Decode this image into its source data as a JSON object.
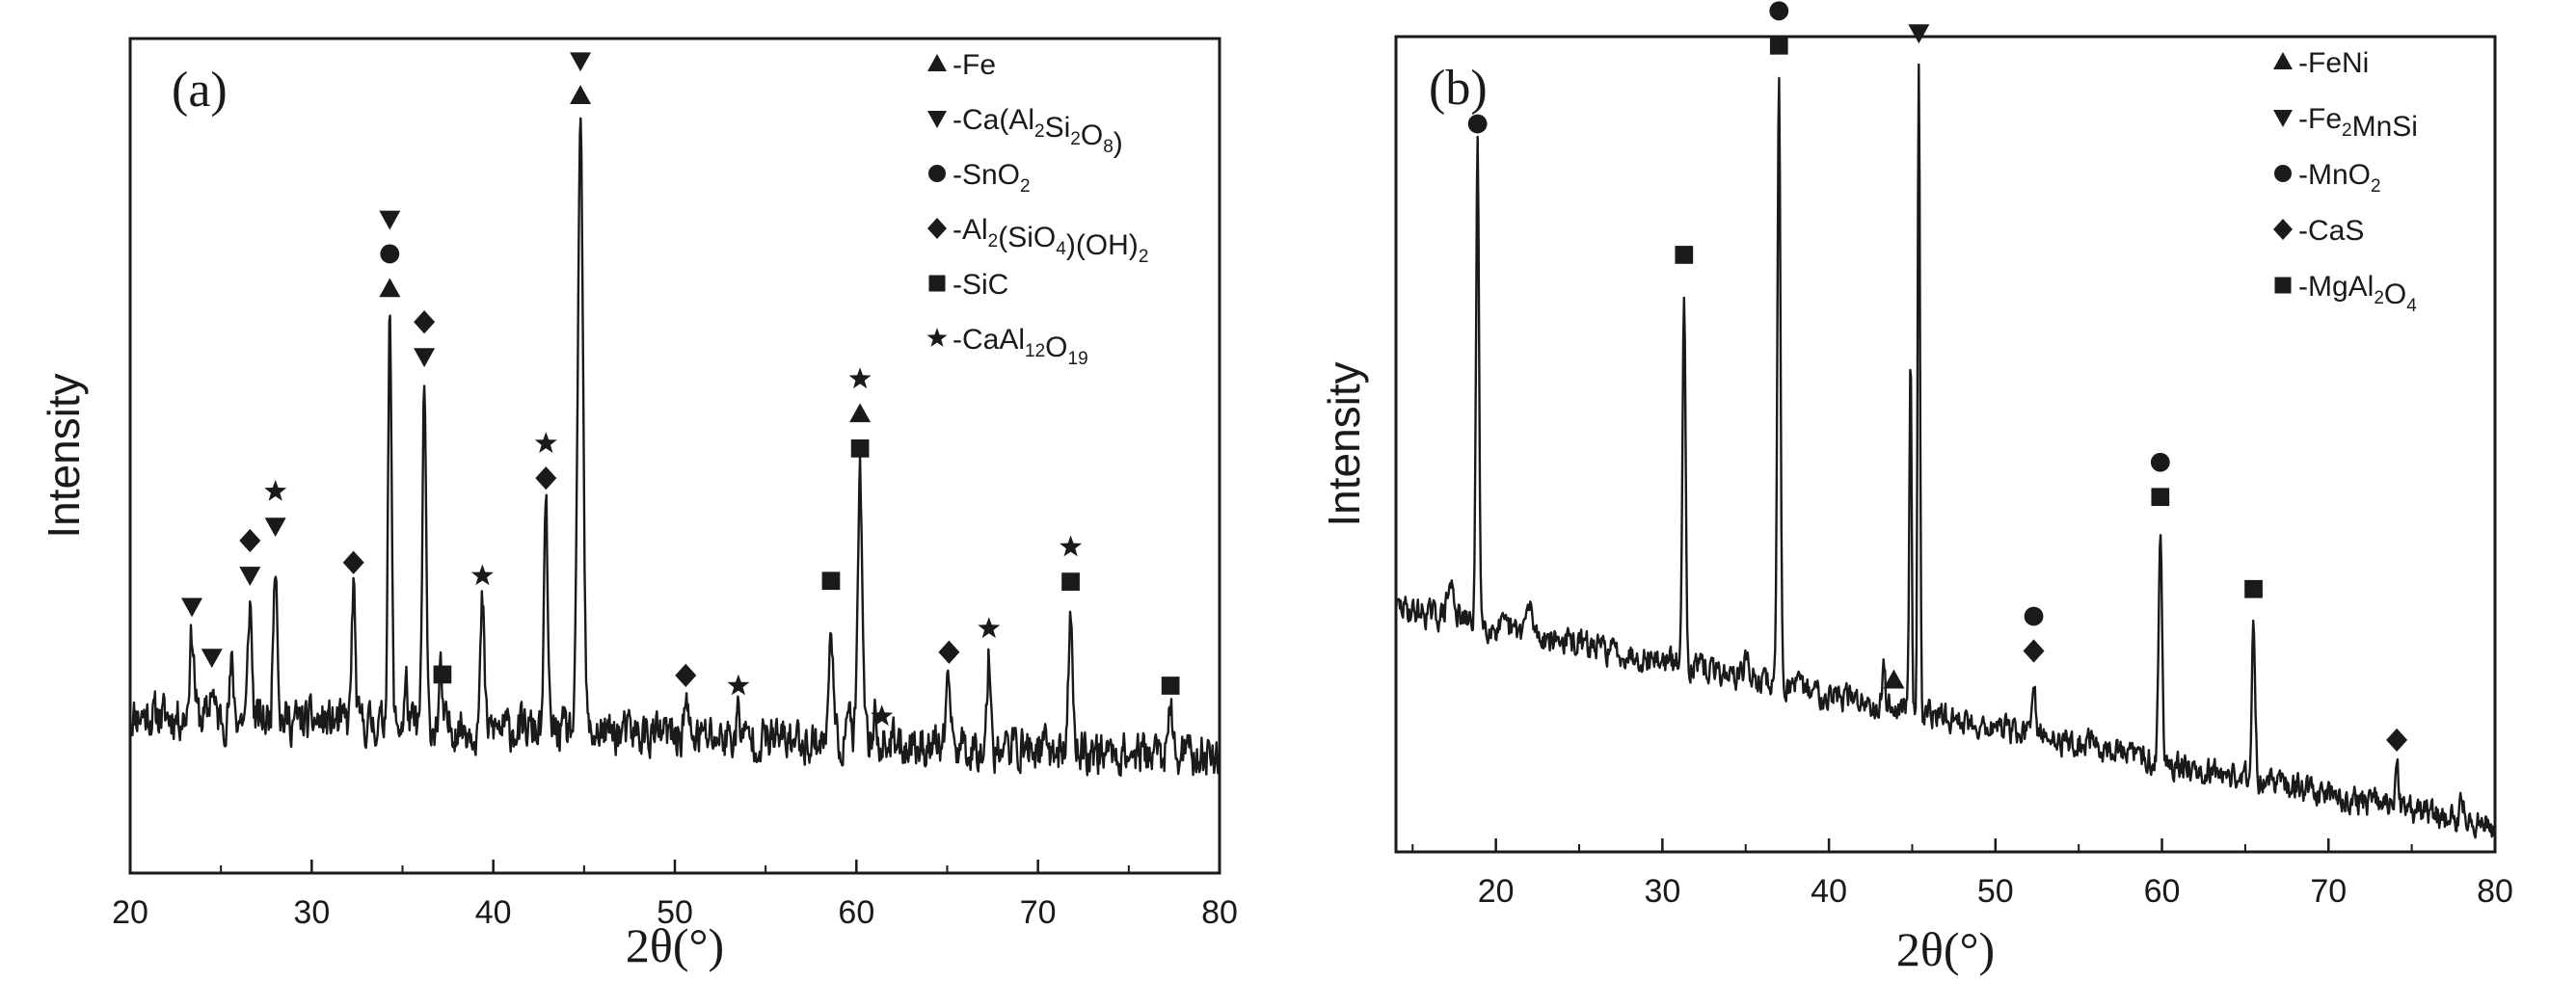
{
  "chart_data": [
    {
      "type": "line",
      "panel_label": "(a)",
      "xlabel": "2θ(°)",
      "ylabel": "Intensity",
      "xlim": [
        20,
        80
      ],
      "x_ticks": [
        "20",
        "30",
        "40",
        "50",
        "60",
        "70",
        "80"
      ],
      "ylim": [
        0,
        100
      ],
      "y_ticks_shown": false,
      "baseline": {
        "start": 19,
        "end": 14,
        "noise": 2.2,
        "seed": 11
      },
      "peaks": [
        {
          "x": 23.4,
          "h": 10,
          "w": 0.18
        },
        {
          "x": 24.5,
          "h": 4,
          "w": 0.15
        },
        {
          "x": 25.6,
          "h": 6,
          "w": 0.15
        },
        {
          "x": 26.6,
          "h": 14,
          "w": 0.15
        },
        {
          "x": 28.0,
          "h": 20,
          "w": 0.16
        },
        {
          "x": 32.3,
          "h": 16,
          "w": 0.14
        },
        {
          "x": 34.3,
          "h": 49,
          "w": 0.14
        },
        {
          "x": 35.2,
          "h": 5,
          "w": 0.12
        },
        {
          "x": 36.2,
          "h": 41,
          "w": 0.14
        },
        {
          "x": 37.1,
          "h": 6,
          "w": 0.12
        },
        {
          "x": 39.4,
          "h": 15,
          "w": 0.14
        },
        {
          "x": 42.9,
          "h": 27,
          "w": 0.14
        },
        {
          "x": 44.8,
          "h": 73,
          "w": 0.2
        },
        {
          "x": 50.6,
          "h": 4,
          "w": 0.15
        },
        {
          "x": 53.5,
          "h": 3,
          "w": 0.15
        },
        {
          "x": 58.6,
          "h": 16,
          "w": 0.14
        },
        {
          "x": 59.6,
          "h": 5,
          "w": 0.12
        },
        {
          "x": 60.2,
          "h": 32,
          "w": 0.17
        },
        {
          "x": 61.0,
          "h": 4,
          "w": 0.12
        },
        {
          "x": 65.1,
          "h": 8,
          "w": 0.15
        },
        {
          "x": 67.3,
          "h": 11,
          "w": 0.15
        },
        {
          "x": 71.8,
          "h": 17,
          "w": 0.15
        },
        {
          "x": 77.3,
          "h": 5,
          "w": 0.15
        }
      ],
      "peak_markers": [
        {
          "x": 23.4,
          "symbols": [
            "triangle-down"
          ]
        },
        {
          "x": 24.5,
          "symbols": [
            "triangle-down"
          ]
        },
        {
          "x": 26.6,
          "symbols": [
            "triangle-down",
            "diamond"
          ]
        },
        {
          "x": 28.0,
          "symbols": [
            "triangle-down",
            "star"
          ]
        },
        {
          "x": 32.3,
          "symbols": [
            "diamond"
          ]
        },
        {
          "x": 34.3,
          "symbols": [
            "triangle-up",
            "circle",
            "triangle-down"
          ]
        },
        {
          "x": 36.2,
          "symbols": [
            "triangle-down",
            "diamond"
          ]
        },
        {
          "x": 37.2,
          "symbols": [
            "square"
          ]
        },
        {
          "x": 39.4,
          "symbols": [
            "star"
          ]
        },
        {
          "x": 42.9,
          "symbols": [
            "diamond",
            "star"
          ]
        },
        {
          "x": 44.8,
          "symbols": [
            "triangle-up",
            "triangle-down"
          ]
        },
        {
          "x": 50.6,
          "symbols": [
            "diamond"
          ]
        },
        {
          "x": 53.5,
          "symbols": [
            "star"
          ]
        },
        {
          "x": 58.6,
          "symbols": [
            "square"
          ]
        },
        {
          "x": 60.2,
          "symbols": [
            "square",
            "triangle-up",
            "star"
          ]
        },
        {
          "x": 61.4,
          "symbols": [
            "star"
          ]
        },
        {
          "x": 65.1,
          "symbols": [
            "diamond"
          ]
        },
        {
          "x": 67.3,
          "symbols": [
            "star"
          ]
        },
        {
          "x": 71.8,
          "symbols": [
            "square",
            "star"
          ]
        },
        {
          "x": 77.3,
          "symbols": [
            "square"
          ]
        }
      ],
      "legend": [
        {
          "symbol": "triangle-up",
          "parts": [
            [
              "n",
              "-Fe"
            ]
          ]
        },
        {
          "symbol": "triangle-down",
          "parts": [
            [
              "n",
              "-Ca(Al"
            ],
            [
              "s",
              "2"
            ],
            [
              "n",
              "Si"
            ],
            [
              "s",
              "2"
            ],
            [
              "n",
              "O"
            ],
            [
              "s",
              "8"
            ],
            [
              "n",
              ")"
            ]
          ]
        },
        {
          "symbol": "circle",
          "parts": [
            [
              "n",
              "-SnO"
            ],
            [
              "s",
              "2"
            ]
          ]
        },
        {
          "symbol": "diamond",
          "parts": [
            [
              "n",
              "-Al"
            ],
            [
              "s",
              "2"
            ],
            [
              "n",
              "(SiO"
            ],
            [
              "s",
              "4"
            ],
            [
              "n",
              ")(OH)"
            ],
            [
              "s",
              "2"
            ]
          ]
        },
        {
          "symbol": "square",
          "parts": [
            [
              "n",
              "-SiC"
            ]
          ]
        },
        {
          "symbol": "star",
          "parts": [
            [
              "n",
              "-CaAl"
            ],
            [
              "s",
              "12"
            ],
            [
              "n",
              "O"
            ],
            [
              "s",
              "19"
            ]
          ]
        }
      ],
      "legend_placement": "top-right"
    },
    {
      "type": "line",
      "panel_label": "(b)",
      "xlabel": "2θ(°)",
      "ylabel": "Intensity",
      "xlim": [
        14,
        80
      ],
      "x_ticks": [
        "20",
        "30",
        "40",
        "50",
        "60",
        "70",
        "80"
      ],
      "ylim": [
        0,
        100
      ],
      "y_ticks_shown": false,
      "baseline": {
        "start": 30,
        "end": 3,
        "noise": 1.4,
        "seed": 29
      },
      "peaks": [
        {
          "x": 17.3,
          "h": 4,
          "w": 0.3
        },
        {
          "x": 18.9,
          "h": 58,
          "w": 0.13
        },
        {
          "x": 22.0,
          "h": 3,
          "w": 0.3
        },
        {
          "x": 31.3,
          "h": 47,
          "w": 0.13
        },
        {
          "x": 35.0,
          "h": 3,
          "w": 0.15
        },
        {
          "x": 37.0,
          "h": 75,
          "w": 0.13
        },
        {
          "x": 43.3,
          "h": 5,
          "w": 0.12
        },
        {
          "x": 44.9,
          "h": 45,
          "w": 0.1
        },
        {
          "x": 45.4,
          "h": 80,
          "w": 0.1
        },
        {
          "x": 52.3,
          "h": 7,
          "w": 0.13
        },
        {
          "x": 55.8,
          "h": 2,
          "w": 0.15
        },
        {
          "x": 59.9,
          "h": 29,
          "w": 0.14
        },
        {
          "x": 65.5,
          "h": 20,
          "w": 0.14
        },
        {
          "x": 74.1,
          "h": 5,
          "w": 0.15
        },
        {
          "x": 78.0,
          "h": 3,
          "w": 0.15
        }
      ],
      "peak_markers": [
        {
          "x": 18.9,
          "symbols": [
            "circle"
          ]
        },
        {
          "x": 31.3,
          "symbols": [
            "square"
          ]
        },
        {
          "x": 37.0,
          "symbols": [
            "square",
            "circle"
          ]
        },
        {
          "x": 43.9,
          "symbols": [
            "triangle-up"
          ]
        },
        {
          "x": 45.4,
          "symbols": [
            "triangle-down"
          ]
        },
        {
          "x": 52.3,
          "symbols": [
            "diamond",
            "circle"
          ]
        },
        {
          "x": 59.9,
          "symbols": [
            "square",
            "circle"
          ]
        },
        {
          "x": 65.5,
          "symbols": [
            "square"
          ]
        },
        {
          "x": 74.1,
          "symbols": [
            "diamond"
          ]
        }
      ],
      "legend": [
        {
          "symbol": "triangle-up",
          "parts": [
            [
              "n",
              "-FeNi"
            ]
          ]
        },
        {
          "symbol": "triangle-down",
          "parts": [
            [
              "n",
              "-Fe"
            ],
            [
              "s",
              "2"
            ],
            [
              "n",
              "MnSi"
            ]
          ]
        },
        {
          "symbol": "circle",
          "parts": [
            [
              "n",
              "-MnO"
            ],
            [
              "s",
              "2"
            ]
          ]
        },
        {
          "symbol": "diamond",
          "parts": [
            [
              "n",
              "-CaS"
            ]
          ]
        },
        {
          "symbol": "square",
          "parts": [
            [
              "n",
              "-MgAl"
            ],
            [
              "s",
              "2"
            ],
            [
              "n",
              "O"
            ],
            [
              "s",
              "4"
            ]
          ]
        }
      ],
      "legend_placement": "top-right"
    }
  ]
}
